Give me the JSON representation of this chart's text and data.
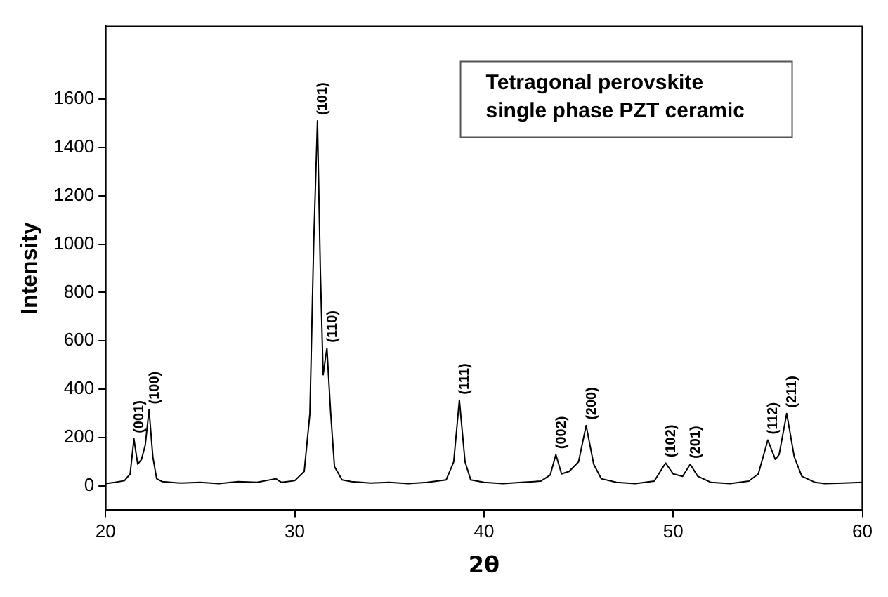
{
  "chart_data": {
    "type": "line",
    "xlabel": "2θ",
    "ylabel": "Intensity",
    "xlim": [
      20,
      60
    ],
    "xticks": [
      20,
      30,
      40,
      50,
      60
    ],
    "ylim": [
      -100,
      1900
    ],
    "yticks": [
      0,
      200,
      400,
      600,
      800,
      1000,
      1200,
      1400,
      1600
    ],
    "grid": false,
    "legend": false,
    "marker": "none",
    "line_style": "solid",
    "series": [
      {
        "color": "#000000",
        "x": [
          20,
          20.5,
          21,
          21.3,
          21.5,
          21.7,
          21.9,
          22.1,
          22.3,
          22.5,
          22.7,
          23,
          24,
          25,
          26,
          27,
          28,
          29,
          29.3,
          30,
          30.5,
          30.8,
          31,
          31.2,
          31.35,
          31.5,
          31.7,
          31.9,
          32.1,
          32.5,
          33,
          34,
          35,
          36,
          37,
          38,
          38.4,
          38.7,
          39,
          39.3,
          40,
          41,
          42,
          43,
          43.5,
          43.8,
          44.1,
          44.5,
          45,
          45.4,
          45.8,
          46.2,
          47,
          48,
          49,
          49.6,
          50,
          50.5,
          50.9,
          51.3,
          52,
          53,
          54,
          54.5,
          55,
          55.4,
          55.6,
          56,
          56.4,
          56.8,
          57.5,
          58,
          59,
          60
        ],
        "values": [
          10,
          15,
          22,
          50,
          195,
          90,
          110,
          170,
          315,
          120,
          30,
          18,
          12,
          15,
          10,
          18,
          15,
          30,
          15,
          22,
          60,
          300,
          1000,
          1510,
          900,
          460,
          570,
          300,
          80,
          25,
          18,
          12,
          15,
          10,
          15,
          25,
          100,
          355,
          100,
          25,
          15,
          10,
          15,
          20,
          45,
          130,
          50,
          60,
          100,
          250,
          90,
          30,
          15,
          10,
          20,
          95,
          50,
          40,
          90,
          40,
          15,
          10,
          20,
          50,
          190,
          110,
          130,
          300,
          120,
          40,
          15,
          10,
          12,
          15
        ]
      }
    ],
    "annotations": [
      {
        "text": "(001)",
        "x": 21.5,
        "y": 195
      },
      {
        "text": "(100)",
        "x": 22.3,
        "y": 315
      },
      {
        "text": "(101)",
        "x": 31.2,
        "y": 1510
      },
      {
        "text": "(110)",
        "x": 31.7,
        "y": 570
      },
      {
        "text": "(111)",
        "x": 38.7,
        "y": 355
      },
      {
        "text": "(002)",
        "x": 43.8,
        "y": 130
      },
      {
        "text": "(200)",
        "x": 45.4,
        "y": 250
      },
      {
        "text": "(102)",
        "x": 49.6,
        "y": 95
      },
      {
        "text": "(201)",
        "x": 50.9,
        "y": 90
      },
      {
        "text": "(112)",
        "x": 55,
        "y": 190
      },
      {
        "text": "(211)",
        "x": 56,
        "y": 300
      },
      "Tetragonal perovskite single phase PZT ceramic"
    ]
  }
}
